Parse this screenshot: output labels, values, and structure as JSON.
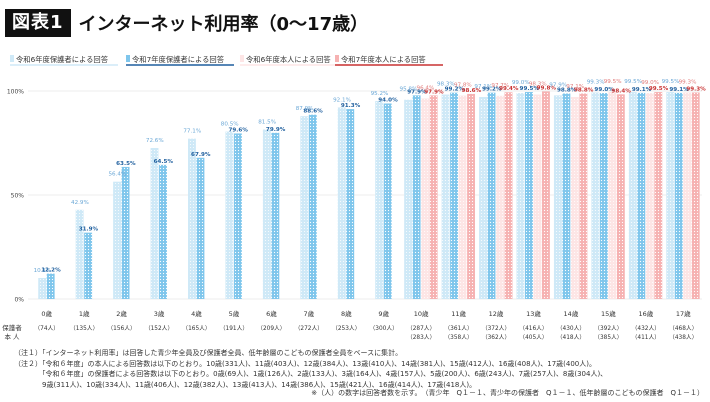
{
  "title": {
    "badge": "図表1",
    "text": "インターネット利用率（0〜17歳）"
  },
  "colors": {
    "s1_fill": "#cfe9f7",
    "s1_label": "#6aa7d6",
    "s2_fill": "#7fc6ec",
    "s2_label": "#1f5f9e",
    "s3_fill": "#fde5e5",
    "s3_label": "#e07b7b",
    "s4_fill": "#f6b2b2",
    "s4_label": "#c83232"
  },
  "chart_data": {
    "type": "bar",
    "ylim": [
      0,
      100
    ],
    "ytick_labels": [
      "0%",
      "50%",
      "100%"
    ],
    "categories": [
      "0歳",
      "1歳",
      "2歳",
      "3歳",
      "4歳",
      "5歳",
      "6歳",
      "7歳",
      "8歳",
      "9歳",
      "10歳",
      "11歳",
      "12歳",
      "13歳",
      "14歳",
      "15歳",
      "16歳",
      "17歳"
    ],
    "series": [
      {
        "name": "令和6年度保護者による回答",
        "values": [
          10.1,
          42.9,
          56.4,
          72.6,
          77.1,
          80.5,
          81.5,
          87.9,
          92.1,
          95.2,
          95.8,
          98.3,
          97.1,
          99.0,
          97.9,
          99.3,
          99.5,
          99.5
        ],
        "labels": [
          "10.1%",
          "42.9%",
          "56.4%",
          "72.6%",
          "77.1%",
          "80.5%",
          "81.5%",
          "87.9%",
          "92.1%",
          "95.2%",
          "95.8%",
          "98.3%",
          "97.1%",
          "99.0%",
          "97.9%",
          "99.3%",
          "99.5%",
          "99.5%"
        ]
      },
      {
        "name": "令和7年度保護者による回答",
        "values": [
          12.2,
          31.9,
          63.5,
          64.5,
          67.9,
          79.6,
          79.9,
          88.6,
          91.3,
          94.0,
          97.9,
          99.2,
          99.2,
          99.5,
          98.8,
          99.0,
          99.1,
          99.1
        ],
        "labels": [
          "12.2%",
          "31.9%",
          "63.5%",
          "64.5%",
          "67.9%",
          "79.6%",
          "79.9%",
          "88.6%",
          "91.3%",
          "94.0%",
          "97.9%",
          "99.2%",
          "99.2%",
          "99.5%",
          "98.8%",
          "99.0%",
          "99.1%",
          "99.1%"
        ]
      },
      {
        "name": "令和6年度本人による回答",
        "values": [
          null,
          null,
          null,
          null,
          null,
          null,
          null,
          null,
          null,
          null,
          96.4,
          97.8,
          97.7,
          98.3,
          97.1,
          99.5,
          99.0,
          99.3
        ],
        "labels": [
          "",
          "",
          "",
          "",
          "",
          "",
          "",
          "",
          "",
          "",
          "96.4%",
          "97.8%",
          "97.7%",
          "98.3%",
          "97.1%",
          "99.5%",
          "99.0%",
          "99.3%"
        ]
      },
      {
        "name": "令和7年度本人による回答",
        "values": [
          null,
          null,
          null,
          null,
          null,
          null,
          null,
          null,
          null,
          null,
          97.9,
          98.6,
          99.4,
          99.8,
          98.8,
          98.4,
          99.5,
          99.3
        ],
        "labels": [
          "",
          "",
          "",
          "",
          "",
          "",
          "",
          "",
          "",
          "",
          "97.9%",
          "98.6%",
          "99.4%",
          "99.8%",
          "98.8%",
          "98.4%",
          "99.5%",
          "99.3%"
        ]
      }
    ],
    "row_headers": [
      "保護者",
      "本 人"
    ],
    "parent_counts": [
      "（74人）",
      "（135人）",
      "（156人）",
      "（152人）",
      "（165人）",
      "（191人）",
      "（209人）",
      "（272人）",
      "（253人）",
      "（300人）",
      "（287人）",
      "（361人）",
      "（372人）",
      "（416人）",
      "（430人）",
      "（392人）",
      "（432人）",
      "（468人）"
    ],
    "self_counts": [
      "",
      "",
      "",
      "",
      "",
      "",
      "",
      "",
      "",
      "",
      "（283人）",
      "（358人）",
      "（362人）",
      "（405人）",
      "（418人）",
      "（385人）",
      "（411人）",
      "（438人）"
    ]
  },
  "notes": [
    "（注１）「インターネット利用率」は回答した青少年全員及び保護者全員、低年齢層のこどもの保護者全員をベースに集計。",
    "（注２）「令和６年度」の本人による回答数は以下のとおり。10歳(331人)、11歳(403人)、12歳(384人)、13歳(410人)、14歳(381人)、15歳(412人)、16歳(408人)、17歳(400人)。",
    "　　　　「令和６年度」の保護者による回答数は以下のとおり。0歳(69人)、1歳(126人)、2歳(133人)、3歳(164人)、4歳(157人)、5歳(200人)、6歳(243人)、7歳(257人)、8歳(304人)、",
    "　　　　9歳(311人)、10歳(334人)、11歳(406人)、12歳(382人)、13歳(413人)、14歳(386人)、15歳(421人)、16歳(414人)、17歳(418人)。"
  ],
  "footnote": "※（人）の数字は回答者数を示す。　（青少年　Q１－１、青少年の保護者　Q１－１、低年齢層のこどもの保護者　Q１－１）"
}
